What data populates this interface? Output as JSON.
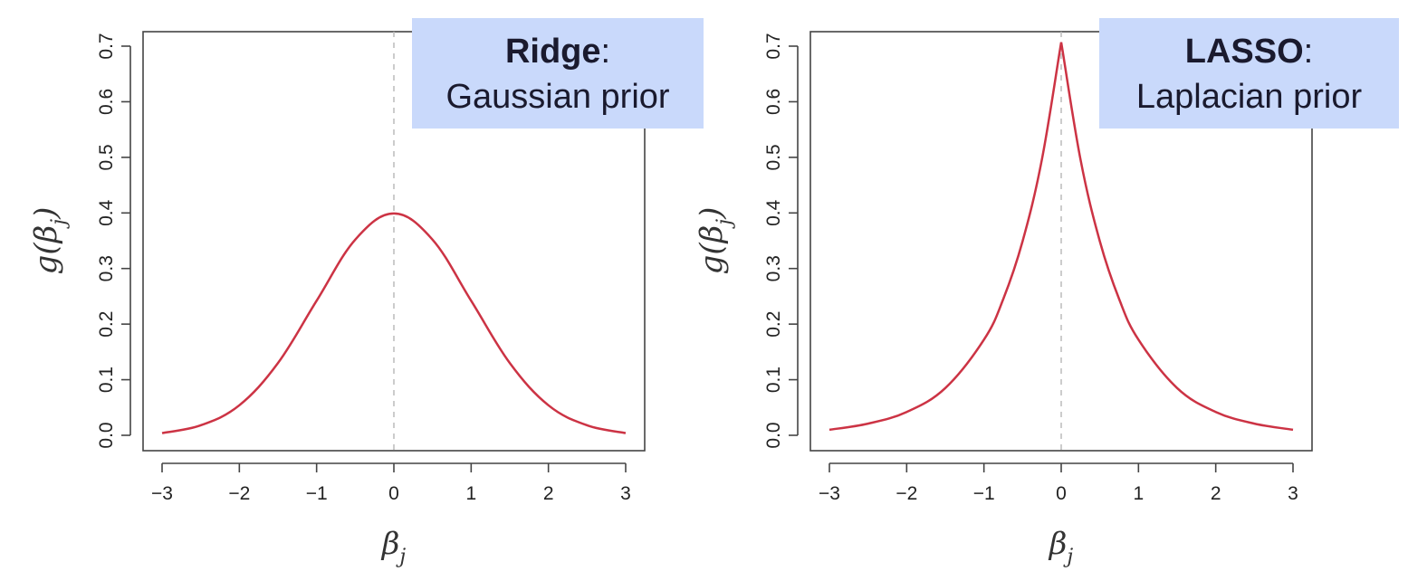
{
  "chart_data": [
    {
      "type": "line",
      "callout": {
        "title_bold": "Ridge",
        "title_suffix": ":",
        "subtitle": "Gaussian prior"
      },
      "xlabel": "β_j",
      "ylabel": "g(β_j)",
      "xlim": [
        -3,
        3
      ],
      "ylim": [
        0,
        0.7
      ],
      "xticks": [
        "−3",
        "−2",
        "−1",
        "0",
        "1",
        "2",
        "3"
      ],
      "yticks": [
        "0.0",
        "0.1",
        "0.2",
        "0.3",
        "0.4",
        "0.5",
        "0.6",
        "0.7"
      ],
      "reference_line_x": 0,
      "series": [
        {
          "color": "#cc3344",
          "x": [
            -3,
            -2.5,
            -2,
            -1.5,
            -1,
            -0.5,
            0,
            0.5,
            1,
            1.5,
            2,
            2.5,
            3
          ],
          "y": [
            0.004,
            0.018,
            0.054,
            0.13,
            0.242,
            0.352,
            0.399,
            0.352,
            0.242,
            0.13,
            0.054,
            0.018,
            0.004
          ]
        }
      ]
    },
    {
      "type": "line",
      "callout": {
        "title_bold": "LASSO",
        "title_suffix": ":",
        "subtitle": "Laplacian prior"
      },
      "xlabel": "β_j",
      "ylabel": "g(β_j)",
      "xlim": [
        -3,
        3
      ],
      "ylim": [
        0,
        0.7
      ],
      "xticks": [
        "−3",
        "−2",
        "−1",
        "0",
        "1",
        "2",
        "3"
      ],
      "yticks": [
        "0.0",
        "0.1",
        "0.2",
        "0.3",
        "0.4",
        "0.5",
        "0.6",
        "0.7"
      ],
      "reference_line_x": 0,
      "series": [
        {
          "color": "#cc3344",
          "x": [
            -3,
            -2.5,
            -2,
            -1.5,
            -1,
            -0.75,
            -0.5,
            -0.25,
            0,
            0.25,
            0.5,
            0.75,
            1,
            1.5,
            2,
            2.5,
            3
          ],
          "y": [
            0.01,
            0.021,
            0.042,
            0.085,
            0.172,
            0.245,
            0.349,
            0.496,
            0.707,
            0.496,
            0.349,
            0.245,
            0.172,
            0.085,
            0.042,
            0.021,
            0.01
          ]
        }
      ]
    }
  ]
}
